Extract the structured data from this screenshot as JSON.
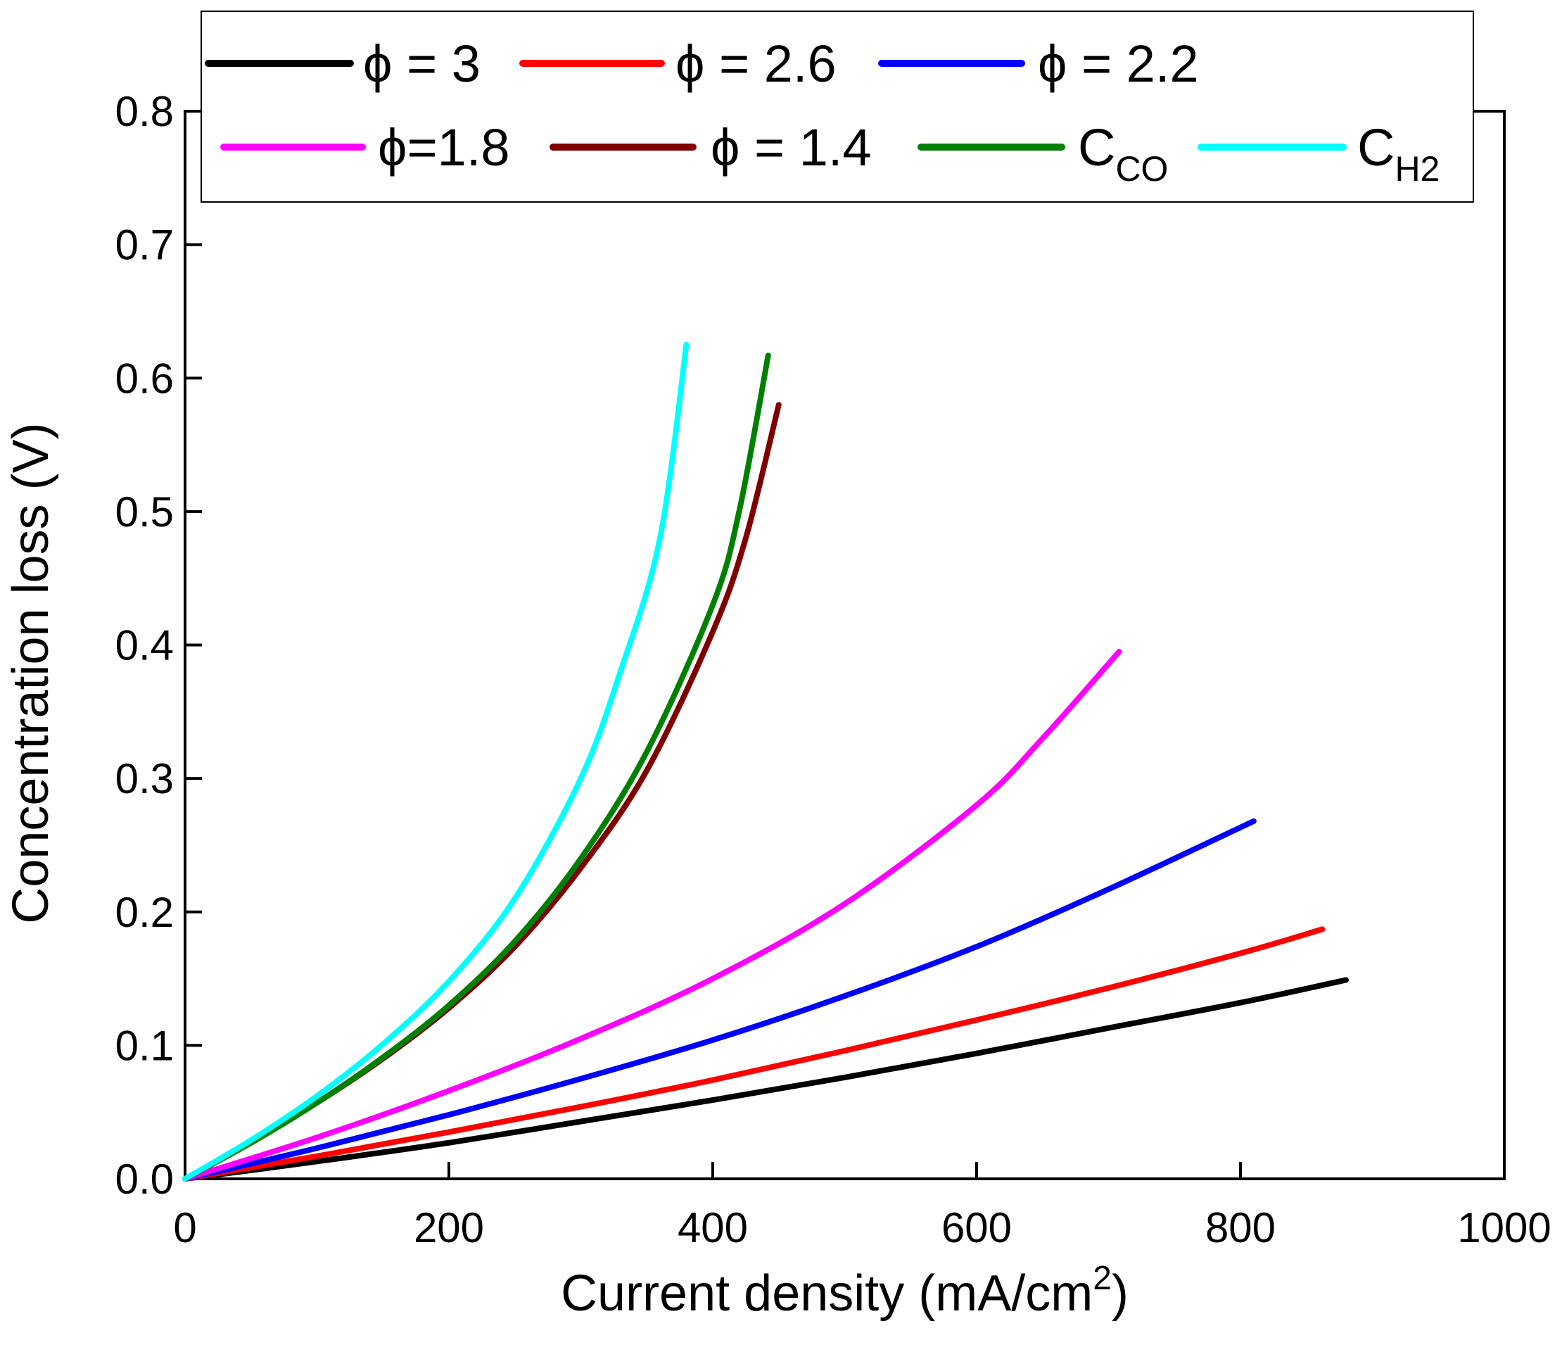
{
  "chart_data": {
    "type": "line",
    "title": "",
    "xlabel": "Current density (mA/cm",
    "xlabel_sup": "2",
    "xlabel_end": ")",
    "ylabel": "Concentration loss (V)",
    "xlim": [
      0,
      1000
    ],
    "ylim": [
      0,
      0.8
    ],
    "xticks": [
      0,
      200,
      400,
      600,
      800,
      1000
    ],
    "xtick_labels": [
      "0",
      "200",
      "400",
      "600",
      "800",
      "1000"
    ],
    "yticks": [
      0.0,
      0.1,
      0.2,
      0.3,
      0.4,
      0.5,
      0.6,
      0.7,
      0.8
    ],
    "ytick_labels": [
      "0.0",
      "0.1",
      "0.2",
      "0.3",
      "0.4",
      "0.5",
      "0.6",
      "0.7",
      "0.8"
    ],
    "grid": false,
    "legend_position": "top",
    "series": [
      {
        "name": "ϕ = 3",
        "label_main": "ϕ = 3",
        "label_sub": "",
        "color": "#000000",
        "x": [
          0,
          100,
          200,
          300,
          400,
          500,
          600,
          700,
          800,
          880
        ],
        "y": [
          0.0,
          0.013,
          0.027,
          0.043,
          0.059,
          0.076,
          0.094,
          0.113,
          0.132,
          0.149
        ]
      },
      {
        "name": "ϕ = 2.6",
        "label_main": "ϕ = 2.6",
        "label_sub": "",
        "color": "#ff0000",
        "x": [
          0,
          100,
          200,
          300,
          400,
          500,
          600,
          700,
          800,
          862
        ],
        "y": [
          0.0,
          0.017,
          0.035,
          0.054,
          0.074,
          0.096,
          0.119,
          0.143,
          0.169,
          0.187
        ]
      },
      {
        "name": "ϕ = 2.2",
        "label_main": "ϕ = 2.2",
        "label_sub": "",
        "color": "#0000ff",
        "x": [
          0,
          100,
          200,
          300,
          400,
          500,
          600,
          700,
          810
        ],
        "y": [
          0.0,
          0.023,
          0.048,
          0.075,
          0.104,
          0.137,
          0.174,
          0.217,
          0.268
        ]
      },
      {
        "name": "ϕ=1.8",
        "label_main": "ϕ=1.8",
        "label_sub": "",
        "color": "#ff00ff",
        "x": [
          0,
          100,
          200,
          300,
          400,
          500,
          600,
          650,
          708
        ],
        "y": [
          0.0,
          0.031,
          0.066,
          0.105,
          0.15,
          0.206,
          0.28,
          0.33,
          0.395
        ]
      },
      {
        "name": "ϕ = 1.4",
        "label_main": "ϕ = 1.4",
        "label_sub": "",
        "color": "#800000",
        "x": [
          0,
          50,
          100,
          150,
          200,
          250,
          300,
          350,
          400,
          425,
          450
        ],
        "y": [
          0.0,
          0.027,
          0.057,
          0.09,
          0.128,
          0.174,
          0.233,
          0.306,
          0.41,
          0.48,
          0.58
        ]
      },
      {
        "name": "CCO",
        "label_main": "C",
        "label_sub": "CO",
        "color": "#008000",
        "x": [
          0,
          50,
          100,
          150,
          200,
          250,
          300,
          350,
          400,
          420,
          442
        ],
        "y": [
          0.0,
          0.027,
          0.057,
          0.091,
          0.13,
          0.178,
          0.24,
          0.32,
          0.43,
          0.5,
          0.617
        ]
      },
      {
        "name": "CH2",
        "label_main": "C",
        "label_sub": "H2",
        "color": "#00ffff",
        "x": [
          0,
          50,
          100,
          150,
          200,
          250,
          300,
          330,
          360,
          380
        ],
        "y": [
          0.0,
          0.029,
          0.062,
          0.101,
          0.148,
          0.21,
          0.3,
          0.38,
          0.48,
          0.625
        ]
      }
    ]
  }
}
